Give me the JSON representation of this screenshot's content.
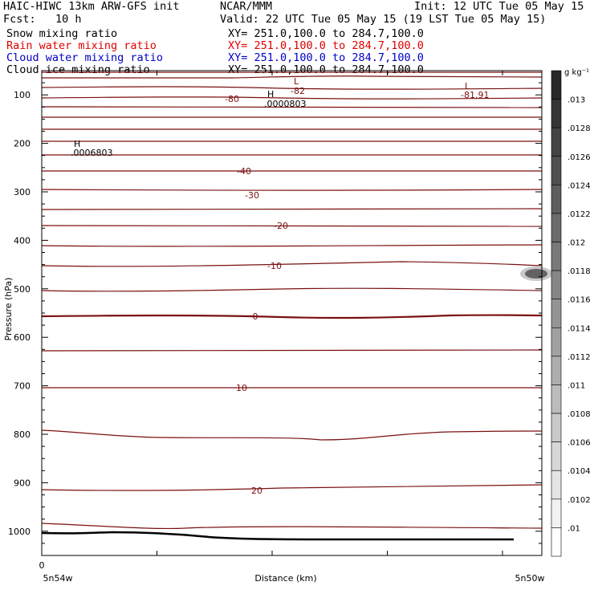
{
  "header": {
    "model": "HAIC-HIWC 13km ARW-GFS init",
    "org": "NCAR/MMM",
    "init": "Init: 12 UTC Tue 05 May 15",
    "fcst": "Fcst:   10 h",
    "valid": "Valid: 22 UTC Tue 05 May 15 (19 LST Tue 05 May 15)",
    "fields": [
      {
        "name": "Snow mixing ratio",
        "xy": "XY= 251.0,100.0 to 284.7,100.0",
        "color": "#000000"
      },
      {
        "name": "Rain water mixing ratio",
        "xy": "XY= 251.0,100.0 to 284.7,100.0",
        "color": "#e00000"
      },
      {
        "name": "Cloud water mixing ratio",
        "xy": "XY= 251.0,100.0 to 284.7,100.0",
        "color": "#0000c8"
      },
      {
        "name": "Cloud ice mixing ratio",
        "xy": "XY= 251.0,100.0 to 284.7,100.0",
        "color": "#000000"
      }
    ]
  },
  "chart_data": {
    "type": "cross-section contour",
    "xlabel": "Distance (km)",
    "ylabel": "Pressure (hPa)",
    "x_start_label": "5n54w",
    "x_end_label": "5n50w",
    "x_zero_label": "0",
    "ylim": [
      1050,
      50
    ],
    "yticks": [
      100,
      200,
      300,
      400,
      500,
      600,
      700,
      800,
      900,
      1000
    ],
    "contour_color": "#7a1010",
    "zero_contour_label": "0",
    "temperature_contours": [
      {
        "label": "-82"
      },
      {
        "label": "-80"
      },
      {
        "label": "-40"
      },
      {
        "label": "-30"
      },
      {
        "label": "-20"
      },
      {
        "label": "-10"
      },
      {
        "label": "0"
      },
      {
        "label": "10"
      },
      {
        "label": "20"
      }
    ],
    "annotations": [
      {
        "marker": "H",
        "value": ".0000803"
      },
      {
        "marker": "H",
        "value": ".0006803"
      },
      {
        "marker": "L",
        "value": "-82"
      },
      {
        "marker": "L",
        "value": "-81.91"
      }
    ],
    "colorbar": {
      "units": "g kg⁻¹",
      "labels": [
        ".013",
        ".0128",
        ".0126",
        ".0124",
        ".0122",
        ".012",
        ".0118",
        ".0116",
        ".0114",
        ".0112",
        ".011",
        ".0108",
        ".0106",
        ".0104",
        ".0102",
        ".01"
      ]
    }
  }
}
